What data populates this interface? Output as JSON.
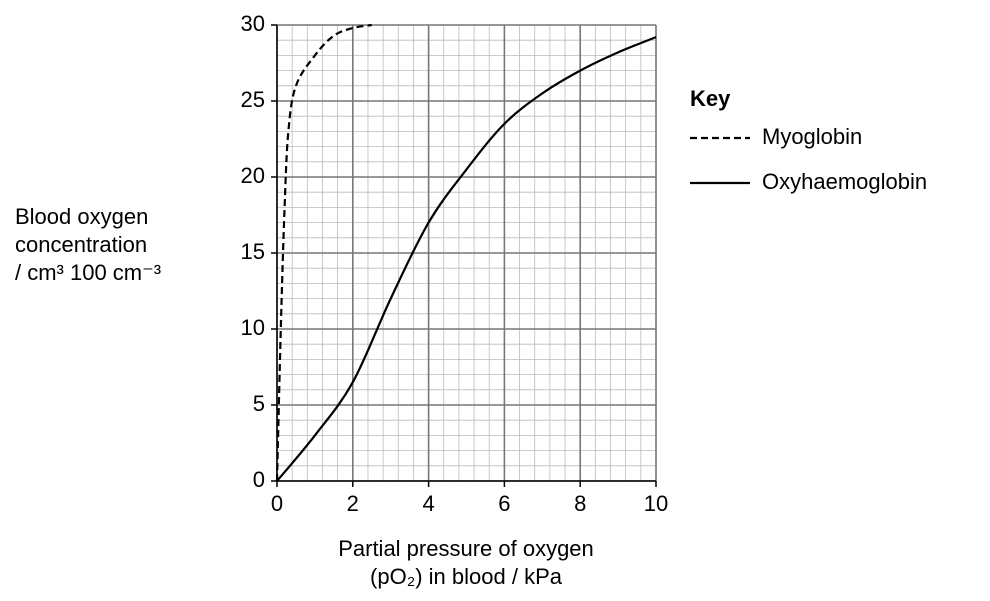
{
  "chart_data": {
    "type": "line",
    "xlabel": [
      "Partial pressure of oxygen",
      "(pO₂) in blood / kPa"
    ],
    "ylabel": [
      "Blood oxygen",
      "concentration",
      "/ cm³ 100 cm⁻³"
    ],
    "legend_title": "Key",
    "xlim": [
      0,
      10
    ],
    "xticks": [
      0,
      2,
      4,
      6,
      8,
      10
    ],
    "ylim": [
      0,
      30
    ],
    "yticks": [
      0,
      5,
      10,
      15,
      20,
      25,
      30
    ],
    "grid": true,
    "minor_grid": {
      "x": 0.4,
      "y": 1
    },
    "series": [
      {
        "name": "Myoglobin",
        "color": "#000000",
        "style": "dashed",
        "x": [
          0,
          0.1,
          0.2,
          0.3,
          0.5,
          1,
          1.5,
          2,
          2.5
        ],
        "values": [
          0,
          10,
          18,
          23,
          26,
          28,
          29.3,
          29.8,
          30
        ]
      },
      {
        "name": "Oxyhaemoglobin",
        "color": "#000000",
        "style": "solid",
        "x": [
          0,
          1,
          2,
          3,
          4,
          5,
          6,
          7,
          8,
          9,
          10
        ],
        "values": [
          0,
          3,
          6.5,
          12,
          17,
          20.5,
          23.5,
          25.5,
          27,
          28.2,
          29.2
        ]
      }
    ]
  }
}
